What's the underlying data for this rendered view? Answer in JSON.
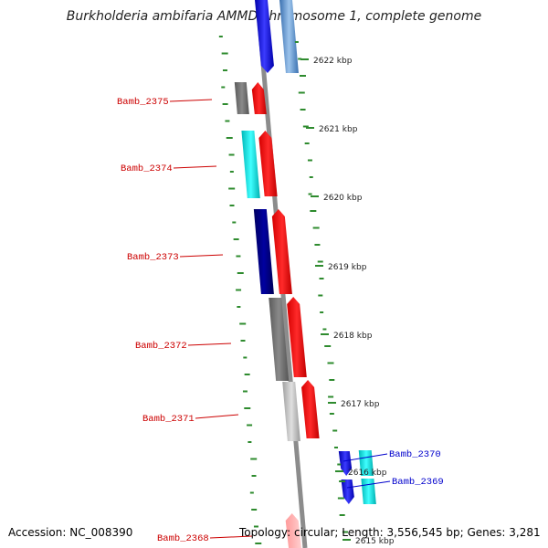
{
  "title": "Burkholderia ambifaria AMMD chromosome 1, complete genome",
  "footer": {
    "accession": "Accession: NC_008390",
    "summary": "Topology: circular; Length: 3,556,545 bp; Genes: 3,281"
  },
  "kbp_ticks": [
    "2622 kbp",
    "2621 kbp",
    "2620 kbp",
    "2619 kbp",
    "2618 kbp",
    "2617 kbp",
    "2616 kbp",
    "2615 kbp"
  ],
  "genes": [
    {
      "label": "Bamb_2375",
      "label_color": "#cc0000"
    },
    {
      "label": "Bamb_2374",
      "label_color": "#cc0000"
    },
    {
      "label": "Bamb_2373",
      "label_color": "#cc0000"
    },
    {
      "label": "Bamb_2372",
      "label_color": "#cc0000"
    },
    {
      "label": "Bamb_2371",
      "label_color": "#cc0000"
    },
    {
      "label": "Bamb_2370",
      "label_color": "#0000cc"
    },
    {
      "label": "Bamb_2369",
      "label_color": "#0000cc"
    },
    {
      "label": "Bamb_2368",
      "label_color": "#cc0000"
    }
  ],
  "colors": {
    "backbone": "#8c8c8c",
    "gc_marks": "#2e8b2e",
    "forward_strand": "#ff0000",
    "reverse_strand": "#0000ee",
    "neighbor_cyan": "#00d8d8",
    "neighbor_gray": "#707070",
    "neighbor_navy": "#000080"
  }
}
